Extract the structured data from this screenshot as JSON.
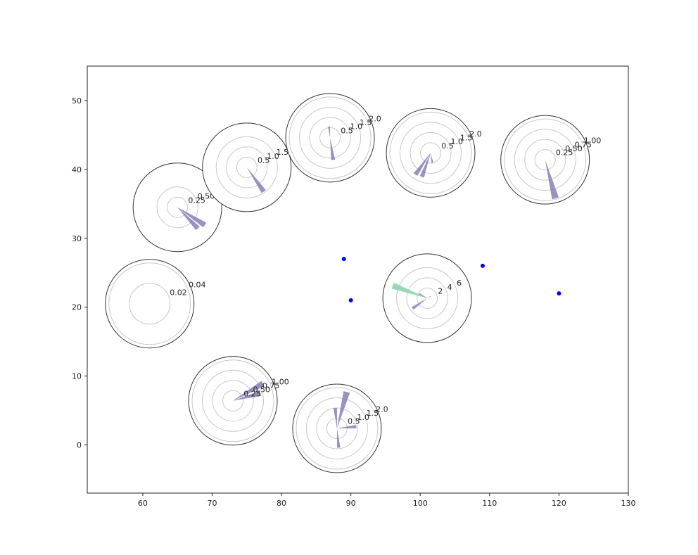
{
  "chart_data": {
    "type": "scatter",
    "title": "",
    "xlabel": "",
    "ylabel": "",
    "xlim": [
      52,
      130
    ],
    "ylim": [
      -7,
      55
    ],
    "xticks": [
      60,
      70,
      80,
      90,
      100,
      110,
      120,
      130
    ],
    "yticks": [
      0,
      10,
      20,
      30,
      40,
      50
    ],
    "grid": false,
    "points": [
      {
        "x": 89,
        "y": 27
      },
      {
        "x": 90,
        "y": 21
      },
      {
        "x": 109,
        "y": 26
      },
      {
        "x": 120,
        "y": 22
      }
    ],
    "point_color": "#0000ff",
    "petal_color": "#8a7fb5",
    "wind_roses": [
      {
        "x": 61,
        "y": 20.5,
        "ring_labels": [
          "0.02",
          "0.04"
        ],
        "max": 0.04,
        "petals": []
      },
      {
        "x": 65,
        "y": 34.5,
        "ring_labels": [
          "0.25",
          "0.50"
        ],
        "max": 1.0,
        "petals": [
          {
            "dir": 123,
            "value": 0.8
          },
          {
            "dir": 136,
            "value": 0.72
          }
        ]
      },
      {
        "x": 75,
        "y": 40.3,
        "ring_labels": [
          "0.5",
          "1.0",
          "1.5"
        ],
        "max": 2.0,
        "petals": [
          {
            "dir": 145,
            "value": 1.45
          }
        ]
      },
      {
        "x": 87,
        "y": 44.6,
        "ring_labels": [
          "0.5",
          "1.0",
          "1.5",
          "2.0"
        ],
        "max": 2.0,
        "petals": [
          {
            "dir": 172,
            "value": 1.1
          },
          {
            "dir": 355,
            "value": 0.55
          }
        ]
      },
      {
        "x": 101.5,
        "y": 42.4,
        "ring_labels": [
          "0.5",
          "1.0",
          "1.5",
          "2.0"
        ],
        "max": 2.0,
        "petals": [
          {
            "dir": 215,
            "value": 1.3
          },
          {
            "dir": 200,
            "value": 1.25
          },
          {
            "dir": 170,
            "value": 0.5
          }
        ]
      },
      {
        "x": 118,
        "y": 41.4,
        "ring_labels": [
          "0.25",
          "0.50",
          "0.75",
          "1.00"
        ],
        "max": 1.0,
        "petals": [
          {
            "dir": 165,
            "value": 0.98
          }
        ]
      },
      {
        "x": 101,
        "y": 21.3,
        "ring_labels": [
          "2",
          "4",
          "6"
        ],
        "max": 8,
        "petals": [
          {
            "dir": 290,
            "value": 7.2,
            "color": "#84d3a8"
          },
          {
            "dir": 235,
            "value": 3.5
          },
          {
            "dir": 300,
            "value": 1.8
          },
          {
            "dir": 60,
            "value": 0.8
          }
        ]
      },
      {
        "x": 73,
        "y": 6.4,
        "ring_labels": [
          "0.25",
          "0.50",
          "0.75",
          "1.00"
        ],
        "max": 1.0,
        "petals": [
          {
            "dir": 60,
            "value": 0.85
          },
          {
            "dir": 75,
            "value": 0.7
          }
        ]
      },
      {
        "x": 88,
        "y": 2.4,
        "ring_labels": [
          "0.5",
          "1.0",
          "1.5",
          "2.0"
        ],
        "max": 2.0,
        "petals": [
          {
            "dir": 15,
            "value": 1.85
          },
          {
            "dir": 355,
            "value": 1.0
          },
          {
            "dir": 85,
            "value": 0.95
          },
          {
            "dir": 175,
            "value": 0.95
          }
        ]
      }
    ]
  }
}
